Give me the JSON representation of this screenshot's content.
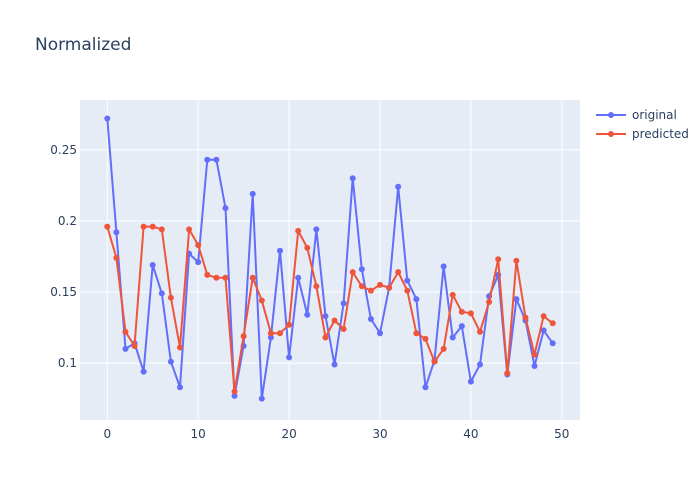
{
  "chart_data": {
    "type": "line",
    "title": "Normalized",
    "xlabel": "",
    "ylabel": "",
    "xlim": [
      -3,
      52
    ],
    "ylim": [
      0.06,
      0.285
    ],
    "x_ticks": [
      0,
      10,
      20,
      30,
      40,
      50
    ],
    "y_ticks": [
      0.1,
      0.15,
      0.2,
      0.25
    ],
    "x_tick_labels": [
      "0",
      "10",
      "20",
      "30",
      "40",
      "50"
    ],
    "y_tick_labels": [
      "0.1",
      "0.15",
      "0.2",
      "0.25"
    ],
    "grid": true,
    "legend": "top-right",
    "x": [
      0,
      1,
      2,
      3,
      4,
      5,
      6,
      7,
      8,
      9,
      10,
      11,
      12,
      13,
      14,
      15,
      16,
      17,
      18,
      19,
      20,
      21,
      22,
      23,
      24,
      25,
      26,
      27,
      28,
      29,
      30,
      31,
      32,
      33,
      34,
      35,
      36,
      37,
      38,
      39,
      40,
      41,
      42,
      43,
      44,
      45,
      46,
      47,
      48,
      49
    ],
    "series": [
      {
        "name": "original",
        "color": "#636efa",
        "values": [
          0.272,
          0.192,
          0.11,
          0.114,
          0.094,
          0.169,
          0.149,
          0.101,
          0.083,
          0.177,
          0.171,
          0.243,
          0.243,
          0.209,
          0.077,
          0.112,
          0.219,
          0.075,
          0.118,
          0.179,
          0.104,
          0.16,
          0.134,
          0.194,
          0.133,
          0.099,
          0.142,
          0.23,
          0.166,
          0.131,
          0.121,
          0.153,
          0.224,
          0.158,
          0.145,
          0.083,
          0.102,
          0.168,
          0.118,
          0.126,
          0.087,
          0.099,
          0.147,
          0.162,
          0.092,
          0.145,
          0.13,
          0.098,
          0.123,
          0.114
        ]
      },
      {
        "name": "predicted",
        "color": "#ef553b",
        "values": [
          0.196,
          0.174,
          0.122,
          0.112,
          0.196,
          0.196,
          0.194,
          0.146,
          0.111,
          0.194,
          0.183,
          0.162,
          0.16,
          0.16,
          0.08,
          0.119,
          0.16,
          0.144,
          0.121,
          0.121,
          0.127,
          0.193,
          0.181,
          0.154,
          0.118,
          0.13,
          0.124,
          0.164,
          0.154,
          0.151,
          0.155,
          0.153,
          0.164,
          0.151,
          0.121,
          0.117,
          0.101,
          0.11,
          0.148,
          0.136,
          0.135,
          0.122,
          0.143,
          0.173,
          0.093,
          0.172,
          0.132,
          0.106,
          0.133,
          0.128
        ]
      }
    ]
  }
}
